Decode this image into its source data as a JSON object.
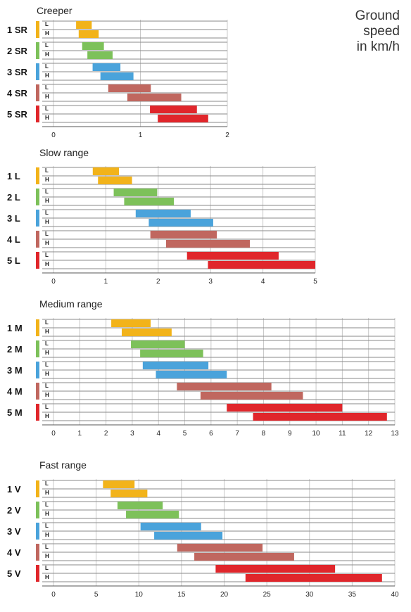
{
  "unit_title": [
    "Ground",
    "speed",
    "in km/h"
  ],
  "colors": {
    "1": "#f2b31a",
    "2": "#7dc15a",
    "3": "#4aa3db",
    "4": "#c0675f",
    "5": "#e0262b",
    "axis": "#555555",
    "grid": "#c8c8c8"
  },
  "chart_data": [
    {
      "type": "bar",
      "title": "Creeper",
      "xlim": [
        0,
        2
      ],
      "ticks": [
        0,
        1,
        2
      ],
      "rows": [
        {
          "label": "1 SR",
          "L": [
            0.26,
            0.44
          ],
          "H": [
            0.29,
            0.52
          ]
        },
        {
          "label": "2 SR",
          "L": [
            0.33,
            0.58
          ],
          "H": [
            0.39,
            0.68
          ]
        },
        {
          "label": "3 SR",
          "L": [
            0.45,
            0.77
          ],
          "H": [
            0.54,
            0.92
          ]
        },
        {
          "label": "4 SR",
          "L": [
            0.63,
            1.12
          ],
          "H": [
            0.85,
            1.47
          ]
        },
        {
          "label": "5 SR",
          "L": [
            1.11,
            1.65
          ],
          "H": [
            1.2,
            1.78
          ]
        }
      ]
    },
    {
      "type": "bar",
      "title": "Slow range",
      "xlim": [
        0,
        5
      ],
      "ticks": [
        0,
        1,
        2,
        3,
        4,
        5
      ],
      "rows": [
        {
          "label": "1 L",
          "L": [
            0.75,
            1.25
          ],
          "H": [
            0.85,
            1.5
          ]
        },
        {
          "label": "2 L",
          "L": [
            1.15,
            1.98
          ],
          "H": [
            1.35,
            2.3
          ]
        },
        {
          "label": "3 L",
          "L": [
            1.57,
            2.62
          ],
          "H": [
            1.82,
            3.05
          ]
        },
        {
          "label": "4 L",
          "L": [
            1.85,
            3.12
          ],
          "H": [
            2.15,
            3.75
          ]
        },
        {
          "label": "5 L",
          "L": [
            2.55,
            4.3
          ],
          "H": [
            2.95,
            5.0
          ]
        }
      ]
    },
    {
      "type": "bar",
      "title": "Medium range",
      "xlim": [
        0,
        13
      ],
      "ticks": [
        0,
        1,
        2,
        3,
        4,
        5,
        6,
        7,
        8,
        9,
        10,
        11,
        12,
        13
      ],
      "rows": [
        {
          "label": "1 M",
          "L": [
            2.2,
            3.7
          ],
          "H": [
            2.6,
            4.5
          ]
        },
        {
          "label": "2 M",
          "L": [
            2.95,
            5.0
          ],
          "H": [
            3.3,
            5.7
          ]
        },
        {
          "label": "3 M",
          "L": [
            3.4,
            5.9
          ],
          "H": [
            3.9,
            6.6
          ]
        },
        {
          "label": "4 M",
          "L": [
            4.7,
            8.3
          ],
          "H": [
            5.6,
            9.5
          ]
        },
        {
          "label": "5 M",
          "L": [
            6.6,
            11.0
          ],
          "H": [
            7.6,
            12.7
          ]
        }
      ]
    },
    {
      "type": "bar",
      "title": "Fast range",
      "xlim": [
        0,
        40
      ],
      "ticks": [
        0,
        5,
        10,
        15,
        20,
        25,
        30,
        35,
        40
      ],
      "rows": [
        {
          "label": "1 V",
          "L": [
            5.8,
            9.5
          ],
          "H": [
            6.7,
            11.0
          ]
        },
        {
          "label": "2 V",
          "L": [
            7.5,
            12.8
          ],
          "H": [
            8.5,
            14.7
          ]
        },
        {
          "label": "3 V",
          "L": [
            10.2,
            17.3
          ],
          "H": [
            11.8,
            19.8
          ]
        },
        {
          "label": "4 V",
          "L": [
            14.5,
            24.5
          ],
          "H": [
            16.5,
            28.2
          ]
        },
        {
          "label": "5 V",
          "L": [
            19.0,
            33.0
          ],
          "H": [
            22.5,
            38.5
          ]
        }
      ]
    }
  ]
}
